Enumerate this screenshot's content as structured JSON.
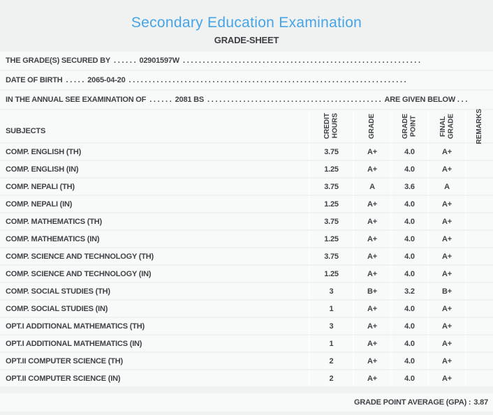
{
  "page": {
    "title": "Secondary Education Examination",
    "subtitle": "GRADE-SHEET"
  },
  "colors": {
    "title_blue": "#45a5e7",
    "text": "#3f4347",
    "page_background": "#f0f1f1",
    "band_background": "#f8f9f9"
  },
  "info_lines": [
    {
      "label": "THE GRADE(S) SECURED BY",
      "dots_before": ". . . . . .",
      "value": "02901597W",
      "dots_after": ". . . . . . . . . . . . . . . . . . . . . . . . . . . . . . . . . . . . . . . . . . . . . . . . . . . . . . . . . . . .",
      "suffix": ""
    },
    {
      "label": "DATE OF BIRTH",
      "dots_before": ". . . . .",
      "value": "2065-04-20",
      "dots_after": ". . . . . . . . . . . . . . . . . . . . . . . . . . . . . . . . . . . . . . . . . . . . . . . . . . . . . . . . . . . . . . . . . . . . . .",
      "suffix": ""
    },
    {
      "label": "IN THE ANNUAL SEE EXAMINATION OF",
      "dots_before": ". . . . . .",
      "value": "2081 BS",
      "dots_after": ". . . . . . . . . . . . . . . . . . . . . . . . . . . . . . . . . . . . . . . . . . . .",
      "suffix": "ARE GIVEN BELOW . . ."
    }
  ],
  "table": {
    "subjects_header": "SUBJECTS",
    "columns": [
      "CREDIT\nHOURS",
      "GRADE",
      "GRADE\nPOINT",
      "FINAL\nGRADE",
      "REMARKS"
    ],
    "rows": [
      {
        "subject": "COMP. ENGLISH (TH)",
        "credit_hours": "3.75",
        "grade": "A+",
        "grade_point": "4.0",
        "final_grade": "A+",
        "remarks": ""
      },
      {
        "subject": "COMP. ENGLISH (IN)",
        "credit_hours": "1.25",
        "grade": "A+",
        "grade_point": "4.0",
        "final_grade": "A+",
        "remarks": ""
      },
      {
        "subject": "COMP. NEPALI (TH)",
        "credit_hours": "3.75",
        "grade": "A",
        "grade_point": "3.6",
        "final_grade": "A",
        "remarks": ""
      },
      {
        "subject": "COMP. NEPALI (IN)",
        "credit_hours": "1.25",
        "grade": "A+",
        "grade_point": "4.0",
        "final_grade": "A+",
        "remarks": ""
      },
      {
        "subject": "COMP. MATHEMATICS (TH)",
        "credit_hours": "3.75",
        "grade": "A+",
        "grade_point": "4.0",
        "final_grade": "A+",
        "remarks": ""
      },
      {
        "subject": "COMP. MATHEMATICS (IN)",
        "credit_hours": "1.25",
        "grade": "A+",
        "grade_point": "4.0",
        "final_grade": "A+",
        "remarks": ""
      },
      {
        "subject": "COMP. SCIENCE AND TECHNOLOGY (TH)",
        "credit_hours": "3.75",
        "grade": "A+",
        "grade_point": "4.0",
        "final_grade": "A+",
        "remarks": ""
      },
      {
        "subject": "COMP. SCIENCE AND TECHNOLOGY (IN)",
        "credit_hours": "1.25",
        "grade": "A+",
        "grade_point": "4.0",
        "final_grade": "A+",
        "remarks": ""
      },
      {
        "subject": "COMP. SOCIAL STUDIES (TH)",
        "credit_hours": "3",
        "grade": "B+",
        "grade_point": "3.2",
        "final_grade": "B+",
        "remarks": ""
      },
      {
        "subject": "COMP. SOCIAL STUDIES (IN)",
        "credit_hours": "1",
        "grade": "A+",
        "grade_point": "4.0",
        "final_grade": "A+",
        "remarks": ""
      },
      {
        "subject": "OPT.I ADDITIONAL MATHEMATICS (TH)",
        "credit_hours": "3",
        "grade": "A+",
        "grade_point": "4.0",
        "final_grade": "A+",
        "remarks": ""
      },
      {
        "subject": "OPT.I ADDITIONAL MATHEMATICS (IN)",
        "credit_hours": "1",
        "grade": "A+",
        "grade_point": "4.0",
        "final_grade": "A+",
        "remarks": ""
      },
      {
        "subject": "OPT.II COMPUTER SCIENCE (TH)",
        "credit_hours": "2",
        "grade": "A+",
        "grade_point": "4.0",
        "final_grade": "A+",
        "remarks": ""
      },
      {
        "subject": "OPT.II COMPUTER SCIENCE (IN)",
        "credit_hours": "2",
        "grade": "A+",
        "grade_point": "4.0",
        "final_grade": "A+",
        "remarks": ""
      }
    ]
  },
  "footer": {
    "gpa_label": "GRADE POINT AVERAGE (GPA) :",
    "gpa_value": "3.87"
  }
}
